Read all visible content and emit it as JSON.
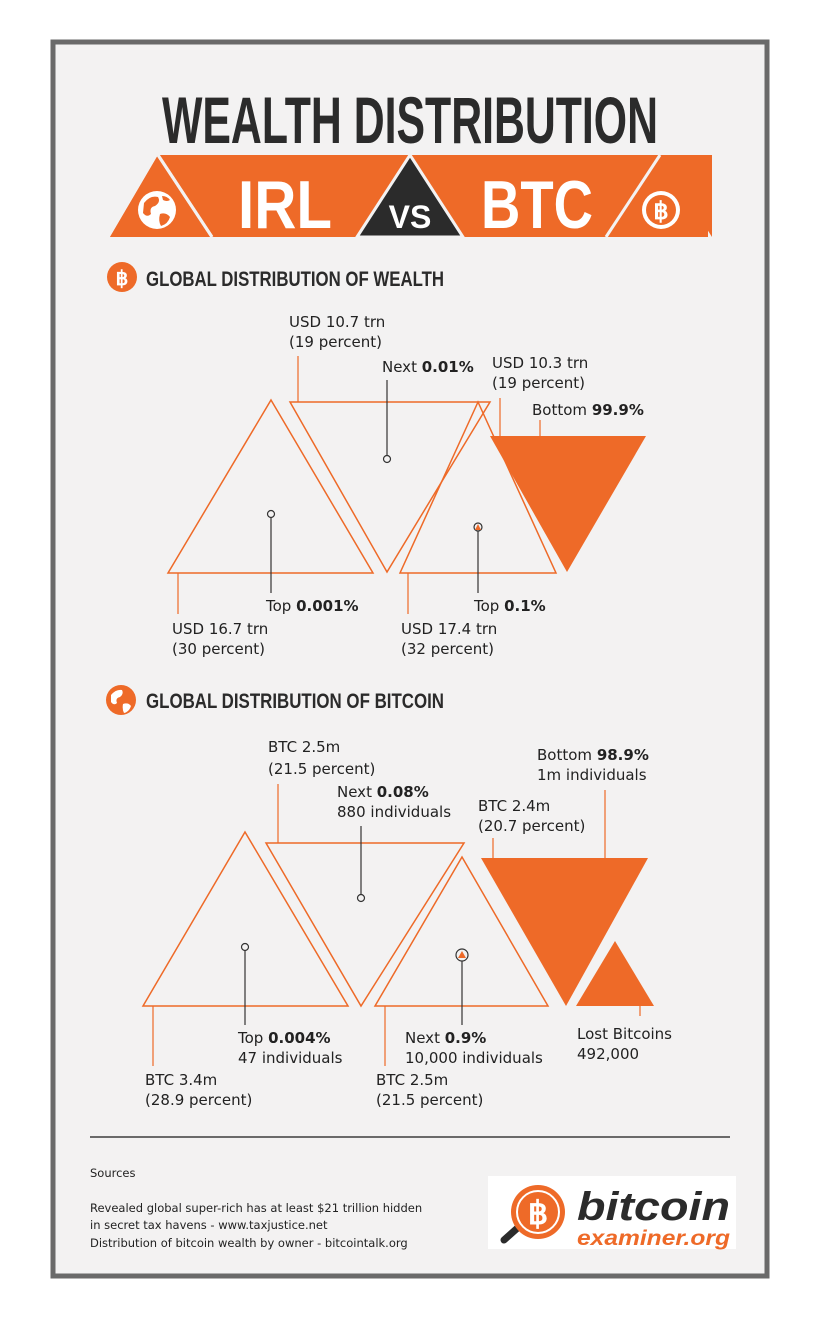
{
  "title": "WEALTH DISTRIBUTION",
  "banner": {
    "left": "IRL",
    "vs": "VS",
    "right": "BTC"
  },
  "colors": {
    "accent": "#ee6a28",
    "dark": "#2b2b2b",
    "frame": "#6a6a6a",
    "panel": "#f3f2f2"
  },
  "icons": {
    "wealth_section": "bitcoin-icon",
    "bitcoin_section": "globe-icon",
    "banner_left": "globe-icon",
    "banner_right": "bitcoin-icon"
  },
  "wealth": {
    "heading": "GLOBAL DISTRIBUTION OF WEALTH",
    "top": {
      "tier": "Top",
      "pct": "0.001%",
      "amount": "USD 16.7 trn",
      "share": "(30 percent)"
    },
    "next1": {
      "tier": "Next",
      "pct": "0.01%",
      "amount": "USD 10.7 trn",
      "share": "(19 percent)"
    },
    "next2": {
      "tier": "Top",
      "pct": "0.1%",
      "amount": "USD 17.4 trn",
      "share": "(32 percent)"
    },
    "bottom": {
      "tier": "Bottom",
      "pct": "99.9%",
      "amount": "USD 10.3 trn",
      "share": "(19 percent)"
    }
  },
  "bitcoin": {
    "heading": "GLOBAL DISTRIBUTION OF BITCOIN",
    "top": {
      "tier": "Top",
      "pct": "0.004%",
      "people": "47 individuals",
      "amount": "BTC 3.4m",
      "share": "(28.9 percent)"
    },
    "next1": {
      "tier": "Next",
      "pct": "0.08%",
      "people": "880 individuals",
      "amount": "BTC 2.5m",
      "share": "(21.5 percent)"
    },
    "next2": {
      "tier": "Next",
      "pct": "0.9%",
      "people": "10,000 individuals",
      "amount": "BTC 2.5m",
      "share": "(21.5 percent)"
    },
    "bottom": {
      "tier": "Bottom",
      "pct": "98.9%",
      "people": "1m individuals",
      "amount": "BTC 2.4m",
      "share": "(20.7 percent)"
    },
    "lost": {
      "label": "Lost Bitcoins",
      "value": "492,000"
    }
  },
  "sources": {
    "heading": "Sources",
    "lines": [
      "Revealed global super-rich has at least $21 trillion hidden",
      "in secret tax havens - www.taxjustice.net",
      "Distribution of bitcoin wealth by owner - bitcointalk.org"
    ]
  },
  "logo": {
    "word1": "bitcoin",
    "word2": "examiner",
    "suffix": ".org"
  }
}
